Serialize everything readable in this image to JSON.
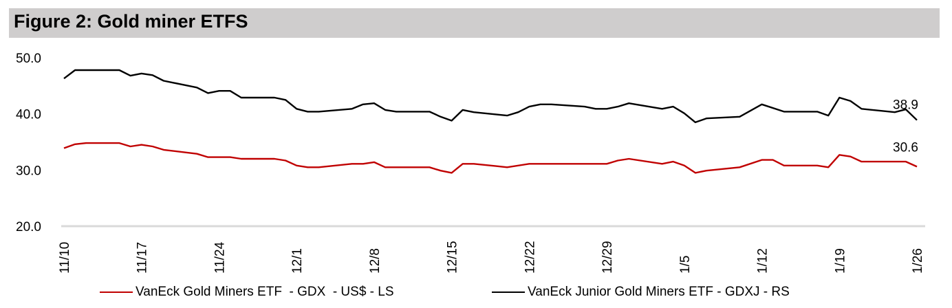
{
  "title": "Figure 2: Gold miner ETFS",
  "chart_data": {
    "type": "line",
    "title": "Figure 2: Gold miner ETFS",
    "x_unit": "days since 11/10",
    "x_range": [
      0,
      77
    ],
    "x_ticks": [
      {
        "day": 0,
        "label": "11/10"
      },
      {
        "day": 7,
        "label": "11/17"
      },
      {
        "day": 14,
        "label": "11/24"
      },
      {
        "day": 21,
        "label": "12/1"
      },
      {
        "day": 28,
        "label": "12/8"
      },
      {
        "day": 35,
        "label": "12/15"
      },
      {
        "day": 42,
        "label": "12/22"
      },
      {
        "day": 49,
        "label": "12/29"
      },
      {
        "day": 56,
        "label": "1/5"
      },
      {
        "day": 63,
        "label": "1/12"
      },
      {
        "day": 70,
        "label": "1/19"
      },
      {
        "day": 77,
        "label": "1/26"
      }
    ],
    "ylim": [
      20,
      50
    ],
    "y_ticks": [
      "20.0",
      "30.0",
      "40.0",
      "50.0"
    ],
    "y_tick_values": [
      20,
      30,
      40,
      50
    ],
    "grid": false,
    "legend_position": "bottom",
    "series": [
      {
        "name": "VanEck Gold Miners ETF  - GDX  - US$ - LS",
        "color": "#c00000",
        "end_label": "30.6",
        "points": [
          [
            0,
            33.9
          ],
          [
            1,
            34.6
          ],
          [
            2,
            34.8
          ],
          [
            5,
            34.8
          ],
          [
            6,
            34.2
          ],
          [
            7,
            34.5
          ],
          [
            8,
            34.2
          ],
          [
            9,
            33.6
          ],
          [
            12,
            32.9
          ],
          [
            13,
            32.3
          ],
          [
            15,
            32.3
          ],
          [
            16,
            32.0
          ],
          [
            19,
            32.0
          ],
          [
            20,
            31.7
          ],
          [
            21,
            30.8
          ],
          [
            22,
            30.5
          ],
          [
            23,
            30.5
          ],
          [
            26,
            31.1
          ],
          [
            27,
            31.1
          ],
          [
            28,
            31.4
          ],
          [
            29,
            30.5
          ],
          [
            33,
            30.5
          ],
          [
            34,
            29.9
          ],
          [
            35,
            29.5
          ],
          [
            36,
            31.1
          ],
          [
            37,
            31.1
          ],
          [
            39,
            30.7
          ],
          [
            40,
            30.5
          ],
          [
            42,
            31.1
          ],
          [
            49,
            31.1
          ],
          [
            50,
            31.7
          ],
          [
            51,
            32.0
          ],
          [
            54,
            31.1
          ],
          [
            55,
            31.5
          ],
          [
            56,
            30.8
          ],
          [
            57,
            29.5
          ],
          [
            58,
            29.9
          ],
          [
            61,
            30.5
          ],
          [
            63,
            31.8
          ],
          [
            64,
            31.8
          ],
          [
            65,
            30.8
          ],
          [
            68,
            30.8
          ],
          [
            69,
            30.5
          ],
          [
            70,
            32.7
          ],
          [
            71,
            32.4
          ],
          [
            72,
            31.5
          ],
          [
            76,
            31.5
          ],
          [
            77,
            30.6
          ]
        ]
      },
      {
        "name": "VanEck Junior Gold Miners ETF - GDXJ - RS",
        "color": "#000000",
        "end_label": "38.9",
        "points": [
          [
            0,
            46.3
          ],
          [
            1,
            47.8
          ],
          [
            5,
            47.8
          ],
          [
            6,
            46.8
          ],
          [
            7,
            47.2
          ],
          [
            8,
            46.9
          ],
          [
            9,
            45.9
          ],
          [
            12,
            44.7
          ],
          [
            13,
            43.7
          ],
          [
            14,
            44.1
          ],
          [
            15,
            44.1
          ],
          [
            16,
            42.9
          ],
          [
            19,
            42.9
          ],
          [
            20,
            42.5
          ],
          [
            21,
            40.9
          ],
          [
            22,
            40.4
          ],
          [
            23,
            40.4
          ],
          [
            26,
            40.9
          ],
          [
            27,
            41.7
          ],
          [
            28,
            41.9
          ],
          [
            29,
            40.7
          ],
          [
            30,
            40.4
          ],
          [
            33,
            40.4
          ],
          [
            34,
            39.5
          ],
          [
            35,
            38.8
          ],
          [
            36,
            40.7
          ],
          [
            37,
            40.3
          ],
          [
            40,
            39.7
          ],
          [
            41,
            40.3
          ],
          [
            42,
            41.3
          ],
          [
            43,
            41.7
          ],
          [
            44,
            41.7
          ],
          [
            47,
            41.3
          ],
          [
            48,
            40.9
          ],
          [
            49,
            40.9
          ],
          [
            50,
            41.3
          ],
          [
            51,
            41.9
          ],
          [
            54,
            40.9
          ],
          [
            55,
            41.3
          ],
          [
            56,
            40.1
          ],
          [
            57,
            38.5
          ],
          [
            58,
            39.2
          ],
          [
            61,
            39.5
          ],
          [
            63,
            41.7
          ],
          [
            65,
            40.4
          ],
          [
            68,
            40.4
          ],
          [
            69,
            39.7
          ],
          [
            70,
            42.9
          ],
          [
            71,
            42.3
          ],
          [
            72,
            40.9
          ],
          [
            75,
            40.3
          ],
          [
            76,
            40.8
          ],
          [
            77,
            38.9
          ]
        ]
      }
    ]
  }
}
